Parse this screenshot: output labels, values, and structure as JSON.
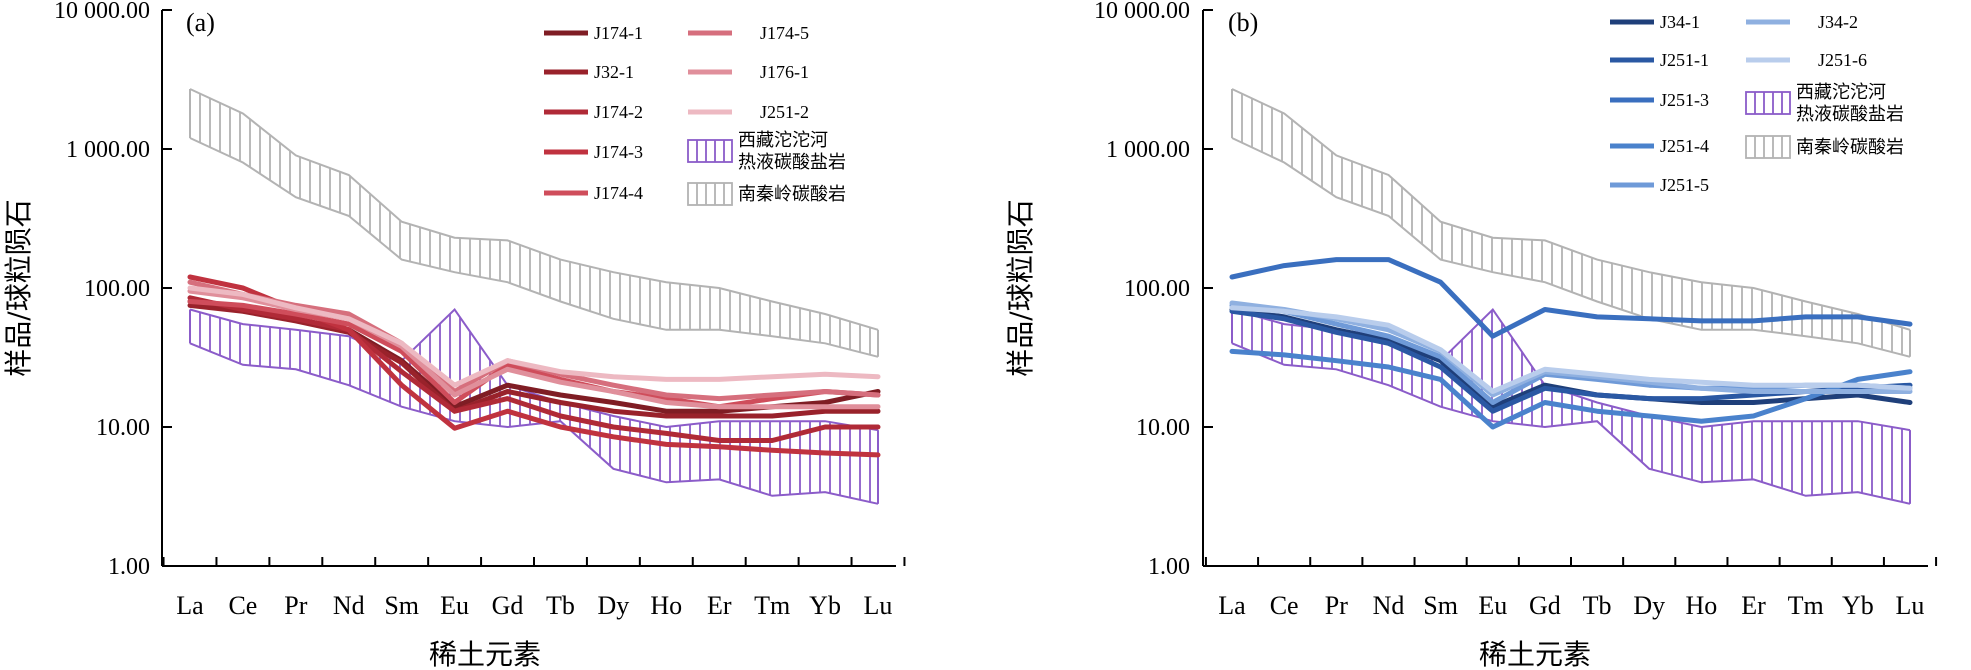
{
  "figure": {
    "y_axis_label": "样品/球粒陨石",
    "x_axis_label": "稀土元素"
  },
  "chart_data": [
    {
      "type": "line",
      "panel_label": "(a)",
      "scale": "log",
      "ylim": [
        1,
        10000
      ],
      "y_ticks": [
        {
          "value": 1,
          "label": "1.00"
        },
        {
          "value": 10,
          "label": "10.00"
        },
        {
          "value": 100,
          "label": "100.00"
        },
        {
          "value": 1000,
          "label": "1 000.00"
        },
        {
          "value": 10000,
          "label": "10 000.00"
        }
      ],
      "categories": [
        "La",
        "Ce",
        "Pr",
        "Nd",
        "Sm",
        "Eu",
        "Gd",
        "Tb",
        "Dy",
        "Ho",
        "Er",
        "Tm",
        "Yb",
        "Lu"
      ],
      "series": [
        {
          "name": "J174-1",
          "color": "#7f1d24",
          "values": [
            80,
            72,
            60,
            50,
            30,
            14,
            20,
            17,
            15,
            13,
            13,
            14,
            15,
            18
          ]
        },
        {
          "name": "J32-1",
          "color": "#99222b",
          "values": [
            75,
            68,
            58,
            48,
            29,
            13,
            18,
            15,
            13,
            12,
            12,
            12,
            13,
            13
          ]
        },
        {
          "name": "J174-2",
          "color": "#b02a37",
          "values": [
            85,
            70,
            60,
            50,
            25,
            13,
            16,
            12,
            10,
            9,
            8,
            8,
            10,
            10
          ]
        },
        {
          "name": "J174-3",
          "color": "#c0323f",
          "values": [
            120,
            100,
            70,
            50,
            20,
            9.8,
            13,
            10,
            8.5,
            7.5,
            7.2,
            6.8,
            6.5,
            6.3
          ]
        },
        {
          "name": "J174-4",
          "color": "#cf4d5b",
          "values": [
            80,
            75,
            65,
            55,
            35,
            15,
            28,
            22,
            18,
            16,
            14,
            16,
            18,
            17
          ]
        },
        {
          "name": "J174-5",
          "color": "#d66f7d",
          "values": [
            110,
            90,
            75,
            65,
            40,
            18,
            30,
            24,
            20,
            17,
            16,
            17,
            18,
            17
          ]
        },
        {
          "name": "J176-1",
          "color": "#e08f9b",
          "values": [
            95,
            85,
            70,
            60,
            38,
            17,
            26,
            21,
            18,
            15,
            14,
            14,
            14,
            14
          ]
        },
        {
          "name": "J251-2",
          "color": "#edb9c2",
          "values": [
            100,
            90,
            72,
            60,
            40,
            20,
            30,
            25,
            23,
            22,
            22,
            23,
            24,
            23
          ]
        }
      ],
      "bands": [
        {
          "name": "西藏沱沱河热液碳酸盐岩",
          "color": "#8b5cc9",
          "upper": [
            70,
            55,
            50,
            45,
            30,
            70,
            20,
            15,
            12,
            10,
            11,
            11,
            11,
            9.5
          ],
          "lower": [
            40,
            28,
            26,
            20,
            14,
            11,
            10,
            11,
            5,
            4,
            4.2,
            3.2,
            3.4,
            2.8
          ]
        },
        {
          "name": "南秦岭碳酸岩",
          "color": "#b3b3b3",
          "upper": [
            2700,
            1800,
            900,
            650,
            300,
            230,
            220,
            160,
            130,
            110,
            100,
            80,
            65,
            50
          ],
          "lower": [
            1200,
            800,
            450,
            330,
            160,
            130,
            110,
            80,
            60,
            50,
            50,
            45,
            40,
            32
          ]
        }
      ],
      "legend_label_series": "J174-1",
      "legend": {
        "col1": [
          "J174-1",
          "J32-1",
          "J174-2",
          "J174-3",
          "J174-4"
        ],
        "col2": [
          "J174-5",
          "J176-1",
          "J251-2"
        ],
        "band_labels": [
          {
            "lines": [
              "西藏沱沱河",
              "热液碳酸盐岩"
            ]
          },
          {
            "lines": [
              "南秦岭碳酸岩"
            ]
          }
        ]
      }
    },
    {
      "type": "line",
      "panel_label": "(b)",
      "scale": "log",
      "ylim": [
        1,
        10000
      ],
      "y_ticks": [
        {
          "value": 1,
          "label": "1.00"
        },
        {
          "value": 10,
          "label": "10.00"
        },
        {
          "value": 100,
          "label": "100.00"
        },
        {
          "value": 1000,
          "label": "1 000.00"
        },
        {
          "value": 10000,
          "label": "10 000.00"
        }
      ],
      "categories": [
        "La",
        "Ce",
        "Pr",
        "Nd",
        "Sm",
        "Eu",
        "Gd",
        "Tb",
        "Dy",
        "Ho",
        "Er",
        "Tm",
        "Yb",
        "Lu"
      ],
      "series": [
        {
          "name": "J34-1",
          "color": "#1f3f7a",
          "values": [
            70,
            62,
            50,
            42,
            30,
            14,
            20,
            17,
            16,
            15,
            15,
            16,
            17,
            15
          ]
        },
        {
          "name": "J251-1",
          "color": "#2a58a3",
          "values": [
            68,
            60,
            48,
            40,
            27,
            13,
            19,
            17,
            16,
            16,
            17,
            18,
            19,
            20
          ]
        },
        {
          "name": "J251-3",
          "color": "#3a6fbf",
          "values": [
            120,
            145,
            160,
            160,
            110,
            45,
            70,
            62,
            60,
            58,
            58,
            62,
            62,
            55
          ]
        },
        {
          "name": "J251-4",
          "color": "#4a82cc",
          "values": [
            35,
            33,
            30,
            27,
            22,
            10,
            15,
            13,
            12,
            11,
            12,
            16,
            22,
            25
          ]
        },
        {
          "name": "J251-5",
          "color": "#6f9ad8",
          "values": [
            75,
            68,
            55,
            45,
            32,
            15,
            24,
            22,
            20,
            19,
            19,
            20,
            20,
            19
          ]
        },
        {
          "name": "J34-2",
          "color": "#8fb0e0",
          "values": [
            78,
            70,
            60,
            50,
            35,
            17,
            25,
            23,
            21,
            19,
            18,
            18,
            18,
            18
          ]
        },
        {
          "name": "J251-6",
          "color": "#b9cdec",
          "values": [
            72,
            68,
            62,
            54,
            36,
            18,
            26,
            24,
            22,
            21,
            20,
            20,
            20,
            19
          ]
        }
      ],
      "bands": [
        {
          "name": "西藏沱沱河热液碳酸盐岩",
          "color": "#8b5cc9",
          "upper": [
            70,
            55,
            50,
            45,
            30,
            70,
            20,
            15,
            12,
            10,
            11,
            11,
            11,
            9.5
          ],
          "lower": [
            40,
            28,
            26,
            20,
            14,
            11,
            10,
            11,
            5,
            4,
            4.2,
            3.2,
            3.4,
            2.8
          ]
        },
        {
          "name": "南秦岭碳酸岩",
          "color": "#b3b3b3",
          "upper": [
            2700,
            1800,
            900,
            650,
            300,
            230,
            220,
            160,
            130,
            110,
            100,
            80,
            65,
            50
          ],
          "lower": [
            1200,
            800,
            450,
            330,
            160,
            130,
            110,
            80,
            60,
            50,
            50,
            45,
            40,
            32
          ]
        }
      ],
      "legend": {
        "col1": [
          "J34-1",
          "J251-1",
          "J251-3",
          "J251-4",
          "J251-5"
        ],
        "col2": [
          "J34-2",
          "J251-6"
        ],
        "band_labels": [
          {
            "lines": [
              "西藏沱沱河",
              "热液碳酸盐岩"
            ]
          },
          {
            "lines": [
              "南秦岭碳酸岩"
            ]
          }
        ]
      }
    }
  ]
}
